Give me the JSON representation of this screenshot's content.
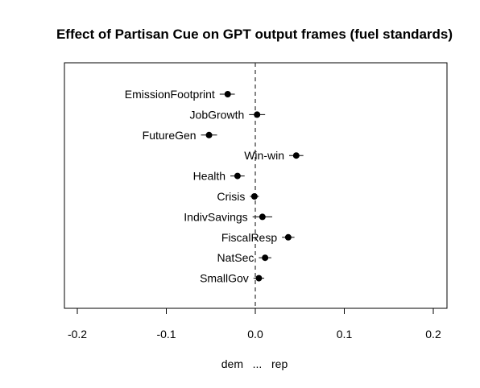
{
  "chart_data": {
    "type": "scatter",
    "title": "Effect of Partisan Cue on GPT output frames (fuel standards)",
    "xlabel": "dem   ...   rep",
    "ylabel": "",
    "xlim": [
      -0.2,
      0.2
    ],
    "x_ticks": [
      "-0.2",
      "-0.1",
      "0.0",
      "0.1",
      "0.2"
    ],
    "x_tick_values": [
      -0.2,
      -0.1,
      0.0,
      0.1,
      0.2
    ],
    "reference_line": 0.0,
    "grid": false,
    "point_color": "#000000",
    "points": [
      {
        "label": "EmissionFootprint",
        "x": -0.031,
        "low": -0.04,
        "high": -0.023
      },
      {
        "label": "JobGrowth",
        "x": 0.002,
        "low": -0.007,
        "high": 0.011
      },
      {
        "label": "FutureGen",
        "x": -0.052,
        "low": -0.061,
        "high": -0.043
      },
      {
        "label": "Win-win",
        "x": 0.046,
        "low": 0.038,
        "high": 0.054
      },
      {
        "label": "Health",
        "x": -0.02,
        "low": -0.028,
        "high": -0.012
      },
      {
        "label": "Crisis",
        "x": -0.001,
        "low": -0.006,
        "high": 0.004
      },
      {
        "label": "IndivSavings",
        "x": 0.008,
        "low": -0.003,
        "high": 0.019
      },
      {
        "label": "FiscalResp",
        "x": 0.037,
        "low": 0.03,
        "high": 0.044
      },
      {
        "label": "NatSec",
        "x": 0.011,
        "low": 0.004,
        "high": 0.018
      },
      {
        "label": "SmallGov",
        "x": 0.004,
        "low": -0.002,
        "high": 0.01
      }
    ]
  }
}
